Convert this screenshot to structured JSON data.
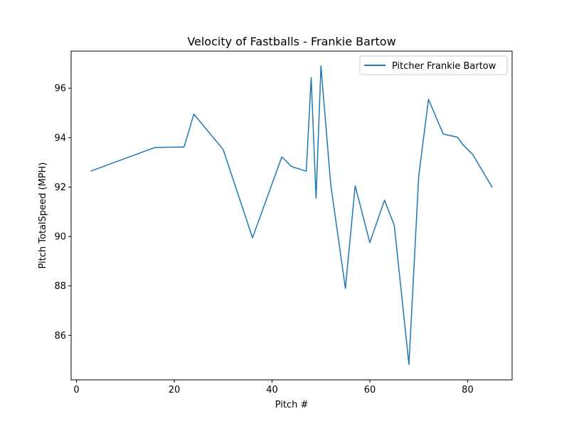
{
  "chart_data": {
    "type": "line",
    "title": "Velocity of Fastballs - Frankie Bartow",
    "xlabel": "Pitch #",
    "ylabel": "Pitch TotalSpeed (MPH)",
    "xlim": [
      -1.1,
      89.1
    ],
    "ylim": [
      84.2,
      97.5
    ],
    "xticks": [
      0,
      20,
      40,
      60,
      80
    ],
    "yticks": [
      86,
      88,
      90,
      92,
      94,
      96
    ],
    "grid": false,
    "legend_position": "upper right",
    "series": [
      {
        "name": "Pitcher Frankie Bartow",
        "color": "#1f77b4",
        "x": [
          3,
          16,
          22,
          24,
          30,
          36,
          42,
          44,
          47,
          48,
          49,
          50,
          52,
          55,
          57,
          60,
          63,
          65,
          68,
          70,
          72,
          75,
          78,
          79,
          81,
          85
        ],
        "y": [
          92.65,
          93.6,
          93.62,
          94.95,
          93.52,
          89.95,
          93.22,
          92.83,
          92.64,
          96.43,
          91.55,
          96.9,
          92.1,
          87.9,
          92.05,
          89.75,
          91.47,
          90.45,
          84.82,
          92.45,
          95.55,
          94.15,
          94.01,
          93.72,
          93.33,
          92.0
        ]
      }
    ]
  }
}
